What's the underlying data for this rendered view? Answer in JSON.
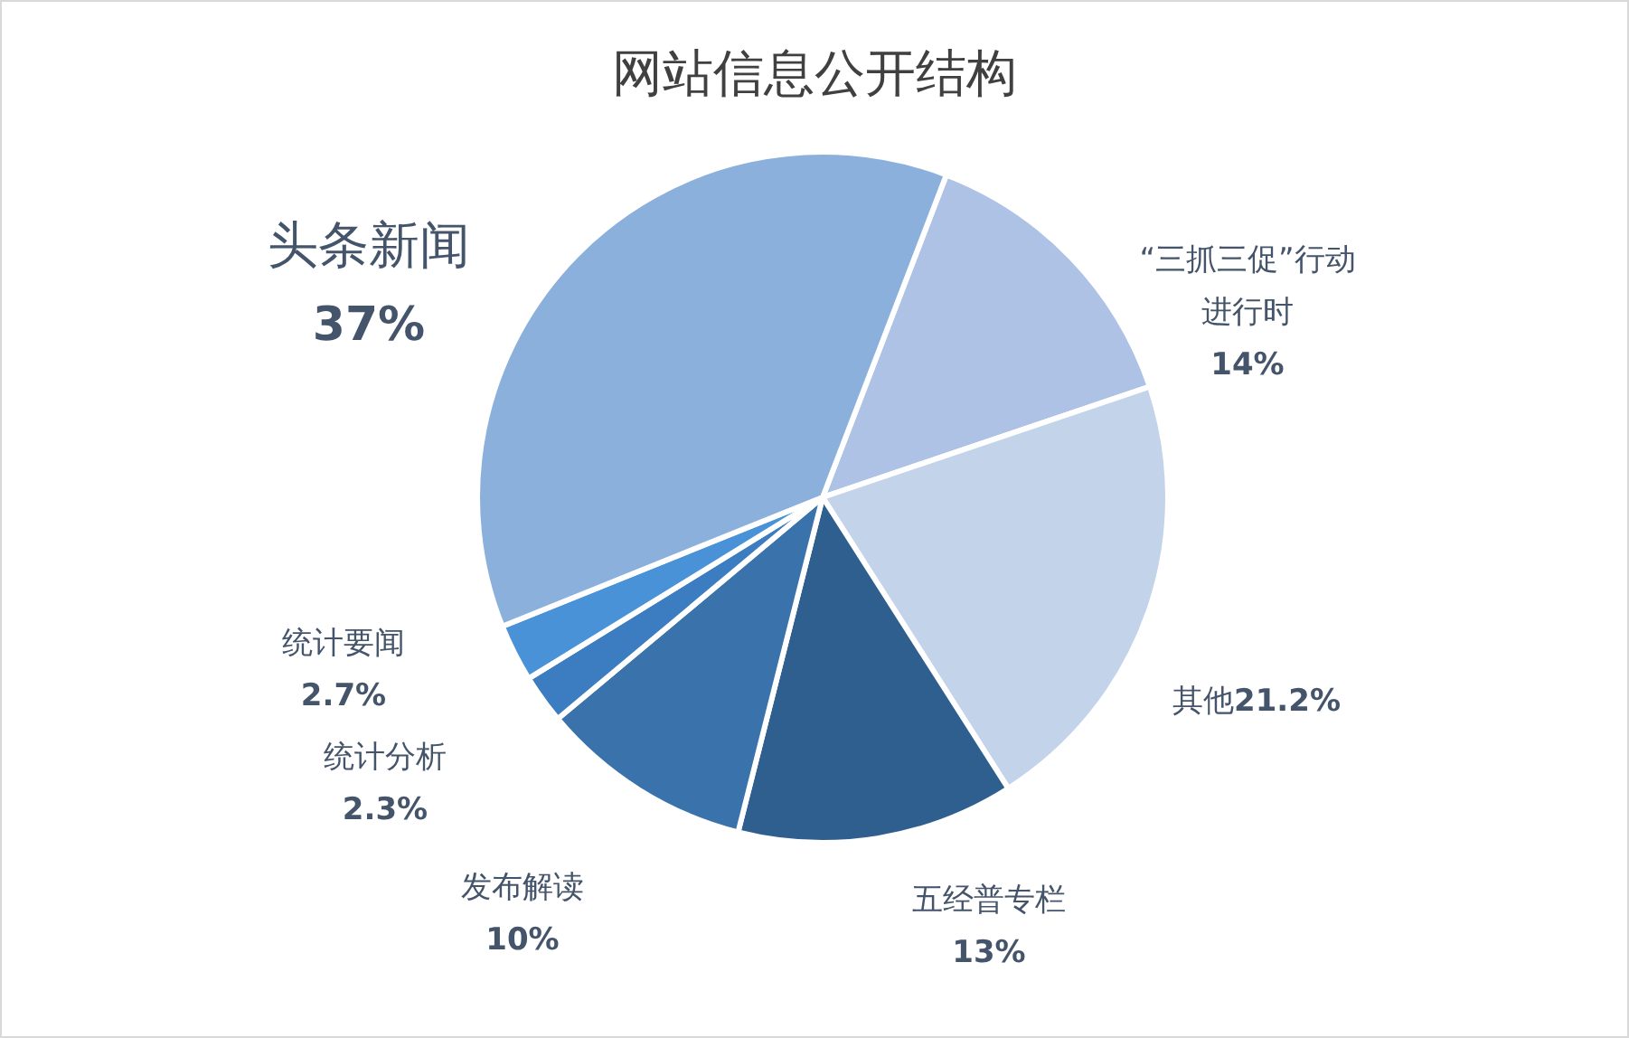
{
  "chart_data": {
    "type": "pie",
    "title": "网站信息公开结构",
    "categories": [
      "“三抓三促”行动进行时",
      "其他",
      "五经普专栏",
      "发布解读",
      "统计分析",
      "统计要闻",
      "头条新闻"
    ],
    "values": [
      14,
      21.2,
      13,
      10,
      2.3,
      2.7,
      37
    ],
    "colors": [
      "#adc2e4",
      "#c3d3ea",
      "#2f5f8f",
      "#3a73ab",
      "#3c7cc0",
      "#4a92d8",
      "#8cb0dc"
    ],
    "value_labels": [
      "14%",
      "21.2%",
      "13%",
      "10%",
      "2.3%",
      "2.7%",
      "37%"
    ]
  }
}
